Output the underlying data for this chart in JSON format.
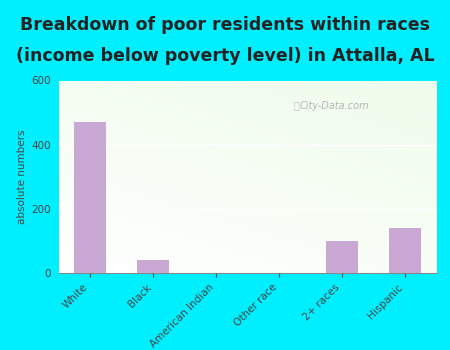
{
  "title_line1": "Breakdown of poor residents within races",
  "title_line2": "(income below poverty level) in Attalla, AL",
  "categories": [
    "White",
    "Black",
    "American Indian",
    "Other race",
    "2+ races",
    "Hispanic"
  ],
  "values": [
    470,
    40,
    0,
    0,
    100,
    140
  ],
  "bar_color": "#c9a8d4",
  "ylabel": "absolute numbers",
  "ylim": [
    0,
    600
  ],
  "yticks": [
    0,
    200,
    400,
    600
  ],
  "outer_bg": "#00efff",
  "title_color": "#222222",
  "title_fontsize": 12.5,
  "watermark": "City-Data.com"
}
